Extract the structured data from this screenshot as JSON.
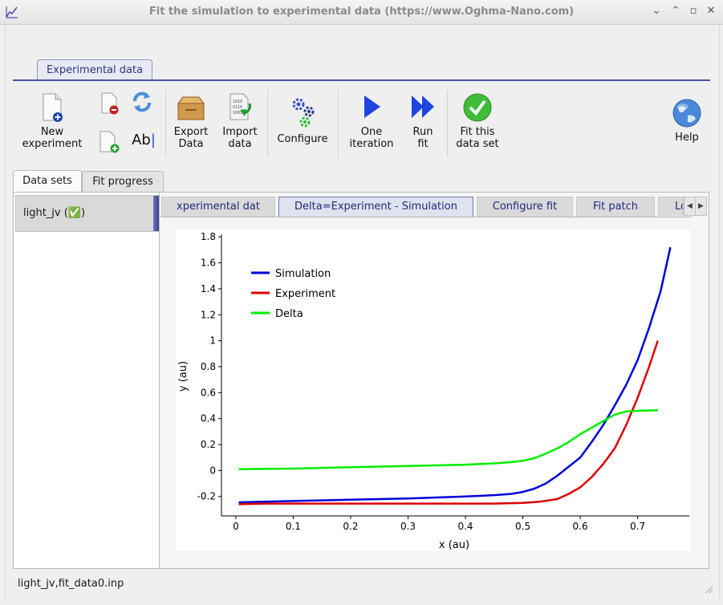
{
  "window": {
    "title": "Fit the simulation to experimental data (https://www.Oghma-Nano.com)",
    "controls": [
      "⌄",
      "⌃",
      "▫",
      "✕"
    ]
  },
  "ribbon": {
    "tab": "Experimental data",
    "buttons": {
      "new_experiment": [
        "New",
        "experiment"
      ],
      "export": [
        "Export",
        "Data"
      ],
      "import": [
        "Import",
        "data"
      ],
      "configure": "Configure",
      "one_iteration": [
        "One",
        "iteration"
      ],
      "run_fit": [
        "Run",
        "fit"
      ],
      "fit_data_set": [
        "Fit this",
        "data set"
      ],
      "help": "Help",
      "rename_label": "Ab"
    }
  },
  "left_tabs": [
    "Data sets",
    "Fit progress"
  ],
  "data_sets": [
    {
      "label": "light_jv (✅)"
    }
  ],
  "right_tabs": [
    "xperimental dat",
    "Delta=Experiment - Simulation",
    "Configure fit",
    "Fit patch",
    "Lo"
  ],
  "status_bar": "light_jv,fit_data0.inp",
  "chart_data": {
    "type": "line",
    "xlabel": "x (au)",
    "ylabel": "y (au)",
    "xlim": [
      -0.025,
      0.79
    ],
    "ylim": [
      -0.35,
      1.82
    ],
    "xticks": [
      "0",
      "0.1",
      "0.2",
      "0.3",
      "0.4",
      "0.5",
      "0.6",
      "0.7"
    ],
    "xtick_values": [
      0,
      0.1,
      0.2,
      0.3,
      0.4,
      0.5,
      0.6,
      0.7
    ],
    "yticks": [
      "-0.2",
      "0",
      "0.2",
      "0.4",
      "0.6",
      "0.8",
      "1",
      "1.2",
      "1.4",
      "1.6",
      "1.8"
    ],
    "ytick_values": [
      -0.2,
      0,
      0.2,
      0.4,
      0.6,
      0.8,
      1.0,
      1.2,
      1.4,
      1.6,
      1.8
    ],
    "legend_position": "top-left",
    "grid": false,
    "series": [
      {
        "name": "Simulation",
        "color": "#0000dd",
        "x": [
          0.005,
          0.05,
          0.1,
          0.15,
          0.2,
          0.25,
          0.3,
          0.35,
          0.4,
          0.45,
          0.48,
          0.5,
          0.52,
          0.54,
          0.56,
          0.58,
          0.6,
          0.62,
          0.64,
          0.66,
          0.68,
          0.7,
          0.72,
          0.74,
          0.757
        ],
        "y": [
          -0.245,
          -0.24,
          -0.235,
          -0.23,
          -0.225,
          -0.22,
          -0.215,
          -0.208,
          -0.2,
          -0.19,
          -0.18,
          -0.165,
          -0.14,
          -0.1,
          -0.04,
          0.03,
          0.1,
          0.22,
          0.35,
          0.5,
          0.66,
          0.85,
          1.1,
          1.38,
          1.72
        ]
      },
      {
        "name": "Experiment",
        "color": "#dd0000",
        "x": [
          0.005,
          0.05,
          0.1,
          0.2,
          0.3,
          0.4,
          0.45,
          0.5,
          0.53,
          0.56,
          0.58,
          0.6,
          0.62,
          0.64,
          0.66,
          0.68,
          0.7,
          0.72,
          0.735
        ],
        "y": [
          -0.26,
          -0.255,
          -0.255,
          -0.255,
          -0.255,
          -0.255,
          -0.255,
          -0.25,
          -0.24,
          -0.22,
          -0.18,
          -0.13,
          -0.05,
          0.05,
          0.17,
          0.35,
          0.56,
          0.8,
          1.0
        ]
      },
      {
        "name": "Delta",
        "color": "#00ee00",
        "x": [
          0.005,
          0.05,
          0.1,
          0.2,
          0.3,
          0.4,
          0.45,
          0.48,
          0.5,
          0.52,
          0.54,
          0.56,
          0.58,
          0.6,
          0.62,
          0.64,
          0.66,
          0.68,
          0.7,
          0.735
        ],
        "y": [
          0.01,
          0.012,
          0.015,
          0.025,
          0.035,
          0.045,
          0.055,
          0.065,
          0.075,
          0.095,
          0.13,
          0.17,
          0.22,
          0.28,
          0.33,
          0.38,
          0.43,
          0.455,
          0.46,
          0.465
        ]
      }
    ]
  }
}
